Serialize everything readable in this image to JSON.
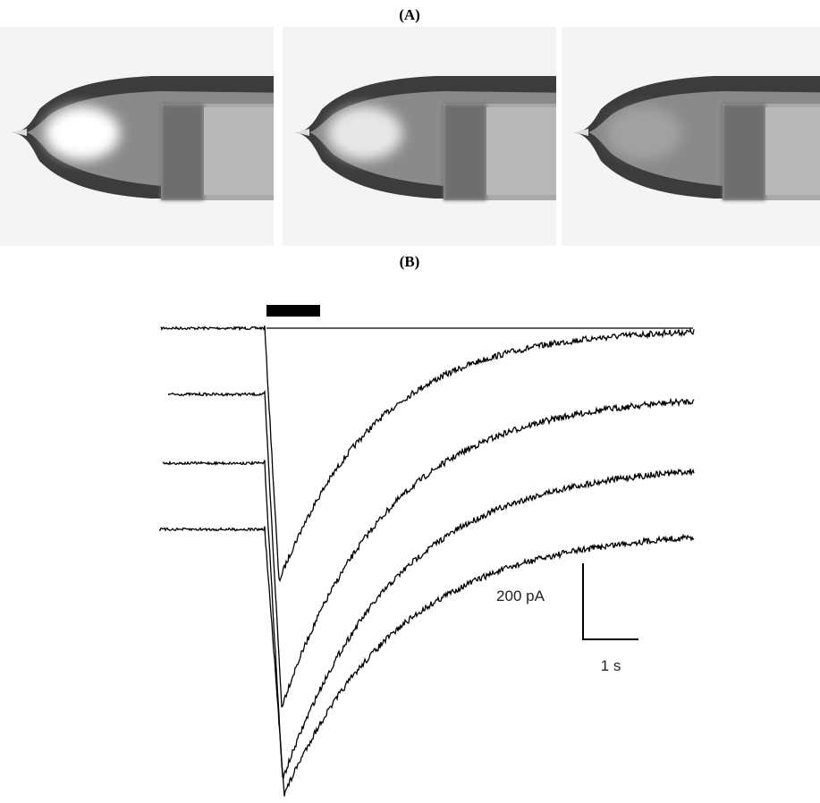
{
  "panel_a": {
    "label": "(A)"
  },
  "panel_b": {
    "label": "(B)",
    "scale_current": "200 pA",
    "scale_time": "1 s"
  }
}
